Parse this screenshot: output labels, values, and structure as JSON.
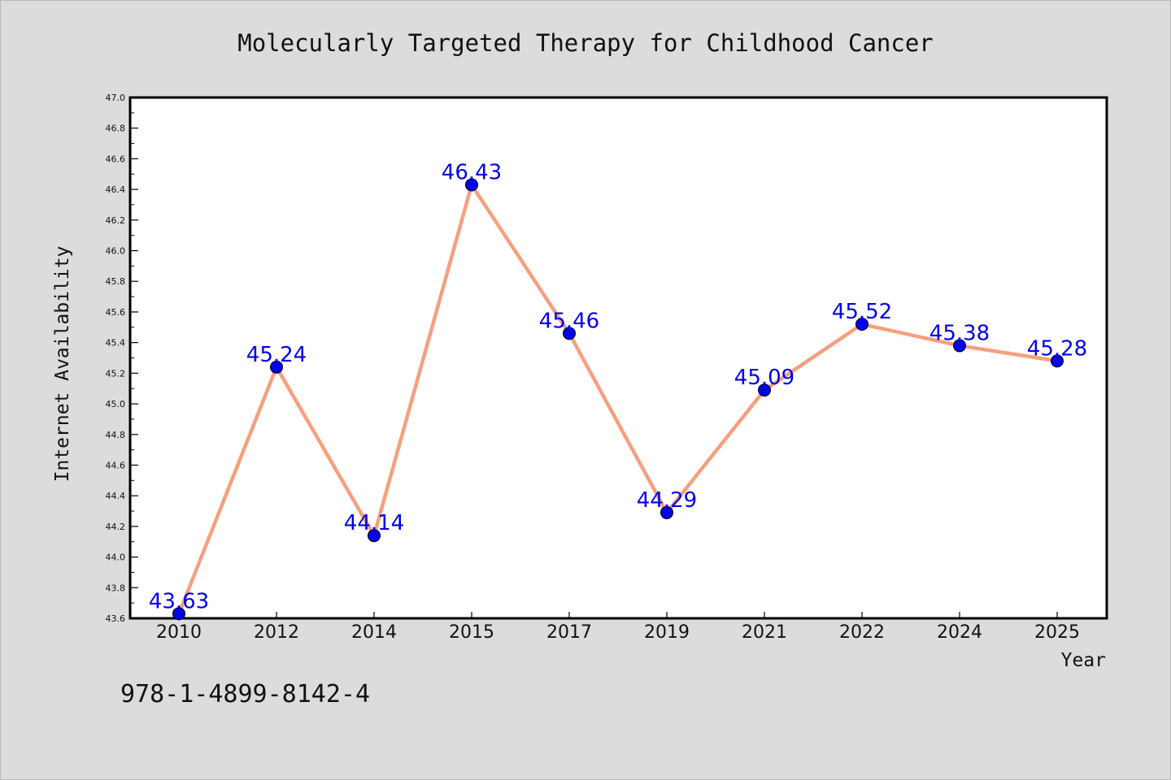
{
  "chart_data": {
    "type": "line",
    "title": "Molecularly Targeted Therapy for Childhood Cancer",
    "xlabel": "Year",
    "ylabel": "Internet Availability",
    "categories": [
      "2010",
      "2012",
      "2014",
      "2015",
      "2017",
      "2019",
      "2021",
      "2022",
      "2024",
      "2025"
    ],
    "series": [
      {
        "values": [
          43.63,
          45.24,
          44.14,
          46.43,
          45.46,
          44.29,
          45.09,
          45.52,
          45.38,
          45.28
        ],
        "data_labels": [
          "43.63",
          "45.24",
          "44.14",
          "46.43",
          "45.46",
          "44.29",
          "45.09",
          "45.52",
          "45.38",
          "45.28"
        ],
        "line_color": "#f4a07e",
        "marker_color": "#0000ee"
      }
    ],
    "ylim": [
      43.6,
      47.0
    ],
    "yticks": [
      "43.6",
      "43.8",
      "44.0",
      "44.2",
      "44.4",
      "44.6",
      "44.8",
      "45.0",
      "45.2",
      "45.4",
      "45.6",
      "45.8",
      "46.0",
      "46.2",
      "46.4",
      "46.6",
      "46.8",
      "47.0"
    ],
    "grid": false,
    "legend": "none"
  },
  "footnote": "978-1-4899-8142-4",
  "colors": {
    "background": "#dcdcdc",
    "plot_background": "#ffffff",
    "line": "#f4a07e",
    "marker": "#0000ee",
    "data_label": "#0000ee"
  }
}
